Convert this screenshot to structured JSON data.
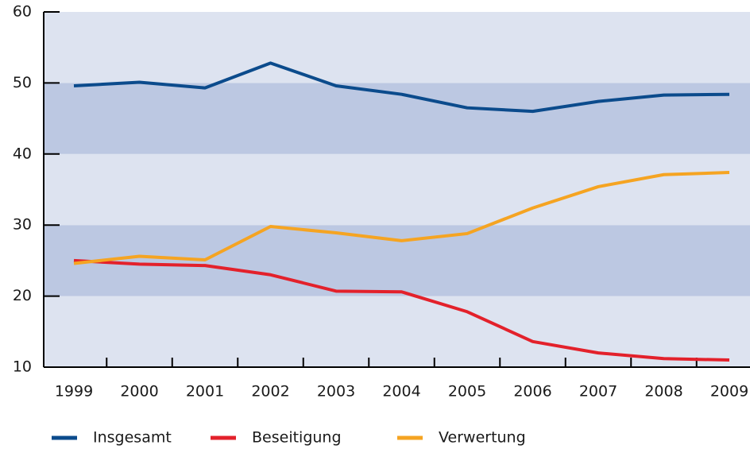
{
  "chart_data": {
    "type": "line",
    "categories": [
      "1999",
      "2000",
      "2001",
      "2002",
      "2003",
      "2004",
      "2005",
      "2006",
      "2007",
      "2008",
      "2009"
    ],
    "series": [
      {
        "name": "Insgesamt",
        "color": "#0b4b8c",
        "values": [
          49.6,
          50.1,
          49.3,
          52.8,
          49.6,
          48.4,
          46.5,
          46.0,
          47.4,
          48.3,
          48.4
        ]
      },
      {
        "name": "Beseitigung",
        "color": "#e3212b",
        "values": [
          25.0,
          24.5,
          24.3,
          23.0,
          20.7,
          20.6,
          17.8,
          13.6,
          12.0,
          11.2,
          11.0
        ]
      },
      {
        "name": "Verwertung",
        "color": "#f5a422",
        "values": [
          24.6,
          25.6,
          25.1,
          29.8,
          28.9,
          27.8,
          28.8,
          32.4,
          35.4,
          37.1,
          37.4
        ]
      }
    ],
    "ylim": [
      10,
      60
    ],
    "yticks": [
      10,
      20,
      30,
      40,
      50,
      60
    ]
  }
}
